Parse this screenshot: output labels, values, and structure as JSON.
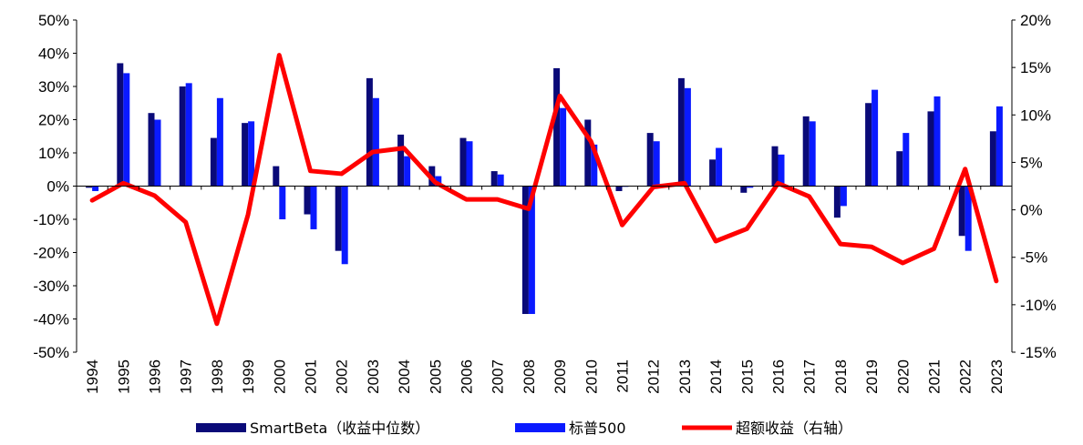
{
  "chart_data": {
    "type": "bar",
    "categories": [
      "1994",
      "1995",
      "1996",
      "1997",
      "1998",
      "1999",
      "2000",
      "2001",
      "2002",
      "2003",
      "2004",
      "2005",
      "2006",
      "2007",
      "2008",
      "2009",
      "2010",
      "2011",
      "2012",
      "2013",
      "2014",
      "2015",
      "2016",
      "2017",
      "2018",
      "2019",
      "2020",
      "2021",
      "2022",
      "2023"
    ],
    "series": [
      {
        "name": "SmartBeta（收益中位数）",
        "chart": "bar",
        "axis": "left",
        "color": "#0a0a78",
        "values": [
          -0.5,
          37,
          22,
          30,
          14.5,
          19,
          6,
          -8.5,
          -19.5,
          32.5,
          15.5,
          6,
          14.5,
          4.5,
          -38.5,
          35.5,
          20,
          -1.5,
          16,
          32.5,
          8,
          -2,
          12,
          21,
          -9.5,
          25,
          10.5,
          22.5,
          -15,
          16.5
        ]
      },
      {
        "name": "标普500",
        "chart": "bar",
        "axis": "left",
        "color": "#0a1aff",
        "values": [
          -1.5,
          34,
          20,
          31,
          26.5,
          19.5,
          -10,
          -13,
          -23.5,
          26.5,
          9,
          3,
          13.5,
          3.5,
          -38.5,
          23.5,
          12.5,
          0,
          13.5,
          29.5,
          11.5,
          -0.5,
          9.5,
          19.5,
          -6,
          29,
          16,
          27,
          -19.5,
          24
        ]
      },
      {
        "name": "超额收益（右轴）",
        "chart": "line",
        "axis": "right",
        "color": "#ff0000",
        "values": [
          1,
          2.8,
          1.5,
          -1.3,
          -12,
          -0.5,
          16.3,
          4.1,
          3.8,
          6.1,
          6.5,
          2.9,
          1.1,
          1.1,
          0.1,
          12,
          7.2,
          -1.6,
          2.4,
          2.8,
          -3.3,
          -2,
          2.8,
          1.4,
          -3.6,
          -3.9,
          -5.6,
          -4.1,
          4.3,
          -7.5
        ]
      }
    ],
    "left_axis": {
      "min": -50,
      "max": 50,
      "step": 10,
      "format": "%"
    },
    "right_axis": {
      "min": -15,
      "max": 20,
      "step": 5,
      "format": "%"
    },
    "legend": {
      "placement": "bottom",
      "entries": [
        "SmartBeta（收益中位数）",
        "标普500",
        "超额收益（右轴）"
      ]
    },
    "grid": false
  }
}
